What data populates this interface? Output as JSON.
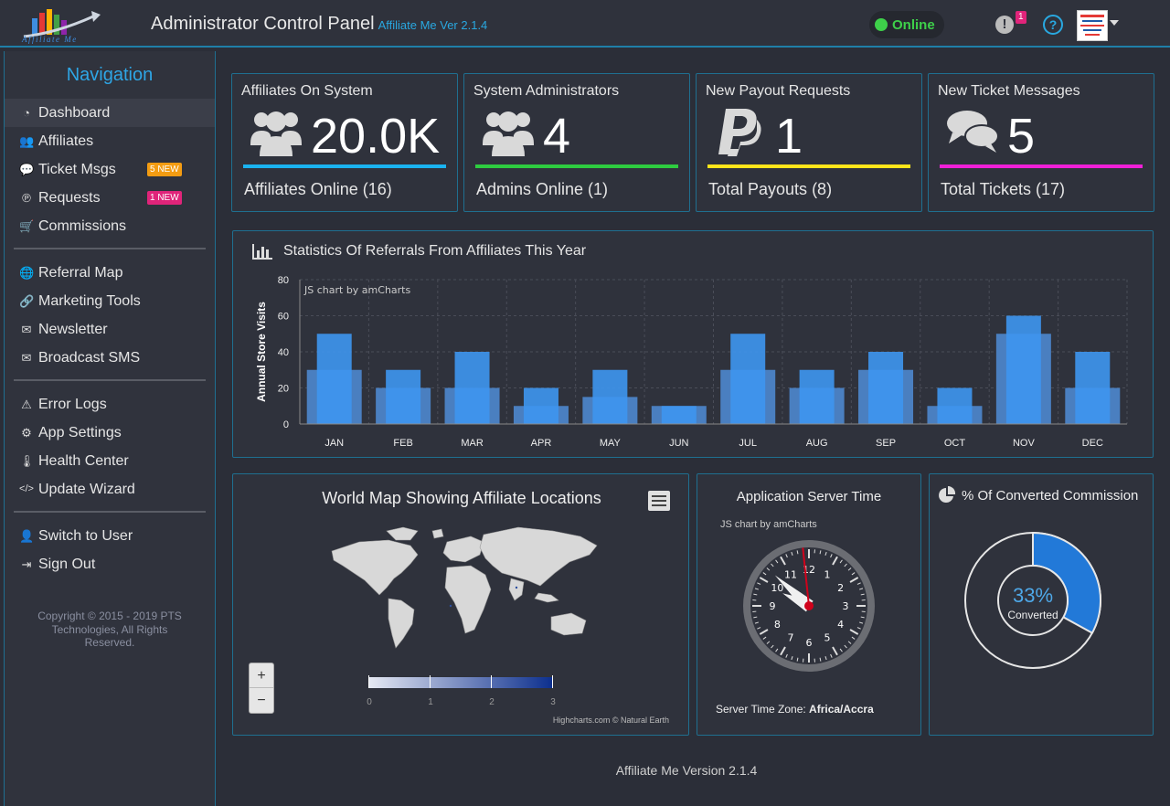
{
  "header": {
    "title": "Administrator Control Panel",
    "version": "Affiliate Me Ver 2.1.4",
    "status": "Online",
    "alert_icon": "exclamation-icon",
    "alert_count": "1",
    "help_icon": "question-icon"
  },
  "sidebar": {
    "title": "Navigation",
    "items": [
      {
        "label": "Dashboard",
        "icon": "tachometer-icon"
      },
      {
        "label": "Affiliates",
        "icon": "users-icon"
      },
      {
        "label": "Ticket Msgs",
        "icon": "comments-icon",
        "badge": "5 NEW"
      },
      {
        "label": "Requests",
        "icon": "paypal-icon",
        "badge": "1 NEW"
      },
      {
        "label": "Commissions",
        "icon": "cart-icon"
      },
      {
        "label": "Referral Map",
        "icon": "globe-icon"
      },
      {
        "label": "Marketing Tools",
        "icon": "link-icon"
      },
      {
        "label": "Newsletter",
        "icon": "envelope-icon"
      },
      {
        "label": "Broadcast SMS",
        "icon": "envelope-outline-icon"
      },
      {
        "label": "Error Logs",
        "icon": "warning-icon"
      },
      {
        "label": "App Settings",
        "icon": "gear-icon"
      },
      {
        "label": "Health Center",
        "icon": "thermometer-icon"
      },
      {
        "label": "Update Wizard",
        "icon": "code-icon"
      },
      {
        "label": "Switch to User",
        "icon": "user-icon"
      },
      {
        "label": "Sign Out",
        "icon": "sign-out-icon"
      }
    ],
    "copyright": "Copyright © 2015 - 2019 PTS Technologies, All Rights Reserved."
  },
  "stats": [
    {
      "title": "Affiliates On System",
      "value": "20.0K",
      "footer": "Affiliates Online (16)",
      "color": "#1ab3f0",
      "icon": "users-icon"
    },
    {
      "title": "System Administrators",
      "value": "4",
      "footer": "Admins Online (1)",
      "color": "#2ecc40",
      "icon": "users-icon"
    },
    {
      "title": "New Payout Requests",
      "value": "1",
      "footer": "Total Payouts (8)",
      "color": "#ffe51a",
      "icon": "paypal-icon"
    },
    {
      "title": "New Ticket Messages",
      "value": "5",
      "footer": "Total Tickets (17)",
      "color": "#f020d8",
      "icon": "comments-icon"
    }
  ],
  "referrals": {
    "title": "Statistics Of Referrals From Affiliates This Year",
    "icon": "bar-chart-icon",
    "credit": "JS chart by amCharts"
  },
  "chart_data": {
    "type": "bar",
    "categories": [
      "JAN",
      "FEB",
      "MAR",
      "APR",
      "MAY",
      "JUN",
      "JUL",
      "AUG",
      "SEP",
      "OCT",
      "NOV",
      "DEC"
    ],
    "series": [
      {
        "values": [
          30,
          20,
          20,
          10,
          15,
          10,
          30,
          20,
          30,
          10,
          50,
          20
        ],
        "color": "#4a7fc0"
      },
      {
        "values": [
          50,
          30,
          40,
          20,
          30,
          10,
          50,
          30,
          40,
          20,
          60,
          40
        ],
        "color": "#3e96f0"
      }
    ],
    "ylabel": "Annual Store Visits",
    "ylim": [
      0,
      80
    ],
    "yticks": [
      0,
      20,
      40,
      60,
      80
    ]
  },
  "map": {
    "title": "World Map Showing Affiliate Locations",
    "menu_icon": "menu-icon",
    "zoom_in": "+",
    "zoom_out": "−",
    "legend_ticks": [
      "0",
      "1",
      "2",
      "3"
    ],
    "credit": "Highcharts.com © Natural Earth"
  },
  "clock": {
    "title": "Application Server Time",
    "credit": "JS chart by amCharts",
    "numbers": [
      "12",
      "1",
      "2",
      "3",
      "4",
      "5",
      "6",
      "7",
      "8",
      "9",
      "10",
      "11"
    ],
    "timezone_label": "Server Time Zone:",
    "timezone": "Africa/Accra",
    "time": {
      "hour": 9.85,
      "minute": 52,
      "second": 59
    }
  },
  "commission": {
    "title": "% Of Converted Commission",
    "icon": "pie-chart-icon",
    "value": "33%",
    "label": "Converted",
    "fraction": 0.33,
    "color": "#2279d8"
  },
  "footer": "Affiliate Me Version 2.1.4"
}
